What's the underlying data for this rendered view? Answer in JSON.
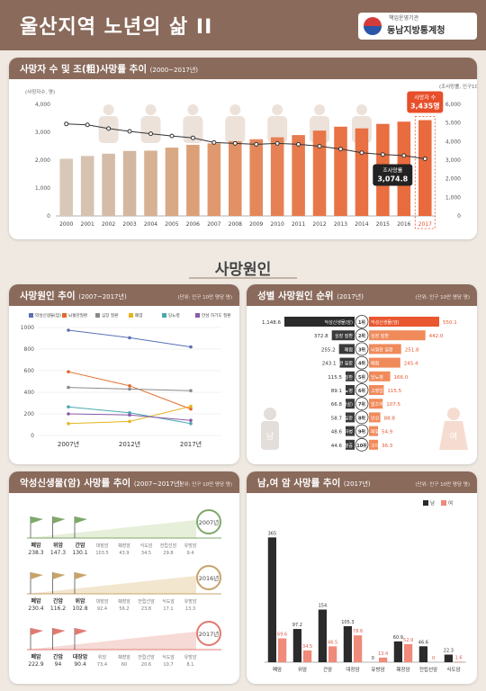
{
  "header": {
    "title": "울산지역 노년의 삶 II",
    "logo_sub": "책임운영기관",
    "logo_name": "동남지방통계청"
  },
  "section_title": "사망원인",
  "colors": {
    "brown": "#8a6a5b",
    "bar_old": "#d8c8b8",
    "bar_new": "#e8743c",
    "line": "#333333",
    "highlight": "#e84e2a"
  },
  "card1": {
    "title": "사망자 수 및 조(粗)사망률 추이",
    "years": "(2000~2017년)"
  },
  "card2": {
    "title": "사망원인 추이",
    "years": "(2007~2017년)",
    "unit": "(단위: 인구 10만 명당 명)"
  },
  "card3": {
    "title": "성별 사망원인 순위",
    "years": "(2017년)",
    "unit": "(단위: 인구 10만 명당 명)"
  },
  "card4": {
    "title": "악성신생물(암) 사망률 추이",
    "years": "(2007~2017년)",
    "unit": "(단위: 인구 10만 명당 명)"
  },
  "card5": {
    "title": "남,여 암 사망률 추이",
    "years": "(2017년)",
    "unit": "(단위: 인구 10만 명당 명)"
  },
  "chart_data": [
    {
      "type": "bar+line",
      "title": "사망자 수 및 조(粗)사망률 추이 (2000~2017년)",
      "ylabel_left": "(사망자수, 명)",
      "ylabel_right": "(조사망률, 인구10만 명당 명)",
      "ylim_left": [
        0,
        4000
      ],
      "ylim_right": [
        0,
        6000
      ],
      "yticks_left": [
        "0",
        "1,000",
        "2,000",
        "3,000",
        "4,000"
      ],
      "yticks_right": [
        "0",
        "1,000",
        "2,000",
        "3,000",
        "4,000",
        "5,000",
        "6,000"
      ],
      "categories": [
        "2000",
        "2001",
        "2002",
        "2003",
        "2004",
        "2005",
        "2006",
        "2007",
        "2008",
        "2009",
        "2010",
        "2011",
        "2012",
        "2013",
        "2014",
        "2015",
        "2016",
        "2017"
      ],
      "series": [
        {
          "name": "사망자 수",
          "values": [
            2050,
            2150,
            2230,
            2330,
            2340,
            2450,
            2550,
            2600,
            2680,
            2750,
            2820,
            2900,
            3060,
            3200,
            3140,
            3300,
            3380,
            3435
          ]
        },
        {
          "name": "조사망률",
          "values": [
            4950,
            4900,
            4700,
            4550,
            4420,
            4300,
            4200,
            3950,
            3900,
            3850,
            3900,
            3850,
            3750,
            3600,
            3400,
            3300,
            3250,
            3074.8
          ]
        }
      ],
      "callout_count": {
        "label": "사망자 수",
        "value": "3,435명"
      },
      "callout_rate": {
        "label": "조사망률",
        "value": "3,074.8"
      }
    },
    {
      "type": "line",
      "title": "사망원인 추이 (2007~2017년)",
      "categories": [
        "2007년",
        "2012년",
        "2017년"
      ],
      "ylim": [
        0,
        1000
      ],
      "yticks": [
        "0",
        "200",
        "400",
        "600",
        "800",
        "1000"
      ],
      "series": [
        {
          "name": "악성신생물(암)",
          "values": [
            975,
            905,
            820
          ]
        },
        {
          "name": "뇌혈관질환",
          "values": [
            590,
            460,
            245
          ]
        },
        {
          "name": "심장 질환",
          "values": [
            445,
            430,
            415
          ]
        },
        {
          "name": "폐렴",
          "values": [
            110,
            130,
            270
          ]
        },
        {
          "name": "당뇨병",
          "values": [
            265,
            210,
            110
          ]
        },
        {
          "name": "만성 하기도 질환",
          "values": [
            200,
            190,
            140
          ]
        }
      ]
    },
    {
      "type": "table",
      "title": "성별 사망원인 순위 (2017년)",
      "male_label": "남",
      "female_label": "여",
      "rows": [
        {
          "rank": "1위",
          "male_cause": "악성신생물(암)",
          "male_value": "1,148.6",
          "female_cause": "악성신생물(암)",
          "female_value": "550.1"
        },
        {
          "rank": "2위",
          "male_cause": "심장 질환",
          "male_value": "372.8",
          "female_cause": "심장 질환",
          "female_value": "442.0"
        },
        {
          "rank": "3위",
          "male_cause": "폐렴",
          "male_value": "255.2",
          "female_cause": "뇌혈관 질환",
          "female_value": "251.8"
        },
        {
          "rank": "4위",
          "male_cause": "뇌혈관 질환",
          "male_value": "243.1",
          "female_cause": "폐렴",
          "female_value": "245.4"
        },
        {
          "rank": "5위",
          "male_cause": "만성 하기도 질환",
          "male_value": "115.5",
          "female_cause": "당뇨병",
          "female_value": "166.0"
        },
        {
          "rank": "6위",
          "male_cause": "당뇨병",
          "male_value": "89.1",
          "female_cause": "고혈압성 질환",
          "female_value": "115.5"
        },
        {
          "rank": "7위",
          "male_cause": "고의적 자해(자살)",
          "male_value": "66.8",
          "female_cause": "알츠하이머병",
          "female_value": "107.5"
        },
        {
          "rank": "8위",
          "male_cause": "간 질환",
          "male_value": "58.7",
          "female_cause": "만성 하기도 질환",
          "female_value": "88.8"
        },
        {
          "rank": "9위",
          "male_cause": "알츠하이머병",
          "male_value": "48.6",
          "female_cause": "패혈증",
          "female_value": "54.9"
        },
        {
          "rank": "10위",
          "male_cause": "패혈증",
          "male_value": "44.6",
          "female_cause": "고의적 자해(자살)",
          "female_value": "36.3"
        }
      ]
    },
    {
      "type": "table",
      "title": "악성신생물(암) 사망률 추이 (2007~2017년)",
      "groups": [
        {
          "year": "2007년",
          "items": [
            {
              "name": "폐암",
              "value": "238.3"
            },
            {
              "name": "위암",
              "value": "147.3"
            },
            {
              "name": "간암",
              "value": "130.1"
            },
            {
              "name": "대장암",
              "value": "103.5"
            },
            {
              "name": "췌장암",
              "value": "43.9"
            },
            {
              "name": "식도암",
              "value": "34.5"
            },
            {
              "name": "전립선암",
              "value": "29.8"
            },
            {
              "name": "유방암",
              "value": "9.4"
            }
          ]
        },
        {
          "year": "2016년",
          "items": [
            {
              "name": "폐암",
              "value": "230.4"
            },
            {
              "name": "간암",
              "value": "116.2"
            },
            {
              "name": "위암",
              "value": "102.8"
            },
            {
              "name": "대장암",
              "value": "92.4"
            },
            {
              "name": "췌장암",
              "value": "56.2"
            },
            {
              "name": "전립선암",
              "value": "23.8"
            },
            {
              "name": "식도암",
              "value": "17.1"
            },
            {
              "name": "유방암",
              "value": "13.3"
            }
          ]
        },
        {
          "year": "2017년",
          "items": [
            {
              "name": "폐암",
              "value": "222.9"
            },
            {
              "name": "간암",
              "value": "94"
            },
            {
              "name": "대장암",
              "value": "90.4"
            },
            {
              "name": "위암",
              "value": "73.4"
            },
            {
              "name": "췌장암",
              "value": "60"
            },
            {
              "name": "전립선암",
              "value": "20.6"
            },
            {
              "name": "식도암",
              "value": "10.7"
            },
            {
              "name": "유방암",
              "value": "8.1"
            }
          ]
        }
      ]
    },
    {
      "type": "bar",
      "title": "남,여 암 사망률 추이 (2017년)",
      "categories": [
        "폐암",
        "위암",
        "간암",
        "대장암",
        "유방암",
        "췌장암",
        "전립선암",
        "식도암"
      ],
      "ylim": [
        0,
        400
      ],
      "series": [
        {
          "name": "남",
          "values": [
            365,
            97.2,
            154,
            105.3,
            0,
            60.9,
            46.6,
            22.3
          ]
        },
        {
          "name": "여",
          "values": [
            69.6,
            34.5,
            46.5,
            78.6,
            13.4,
            52.9,
            0,
            1.6
          ]
        }
      ],
      "labels_male": [
        "365",
        "97.2",
        "154",
        "105.3",
        "0",
        "60.9",
        "46.6",
        "22.3"
      ],
      "labels_female": [
        "69.6",
        "34.5",
        "46.5",
        "78.6",
        "13.4",
        "52.9",
        "0",
        "1.6"
      ]
    }
  ]
}
